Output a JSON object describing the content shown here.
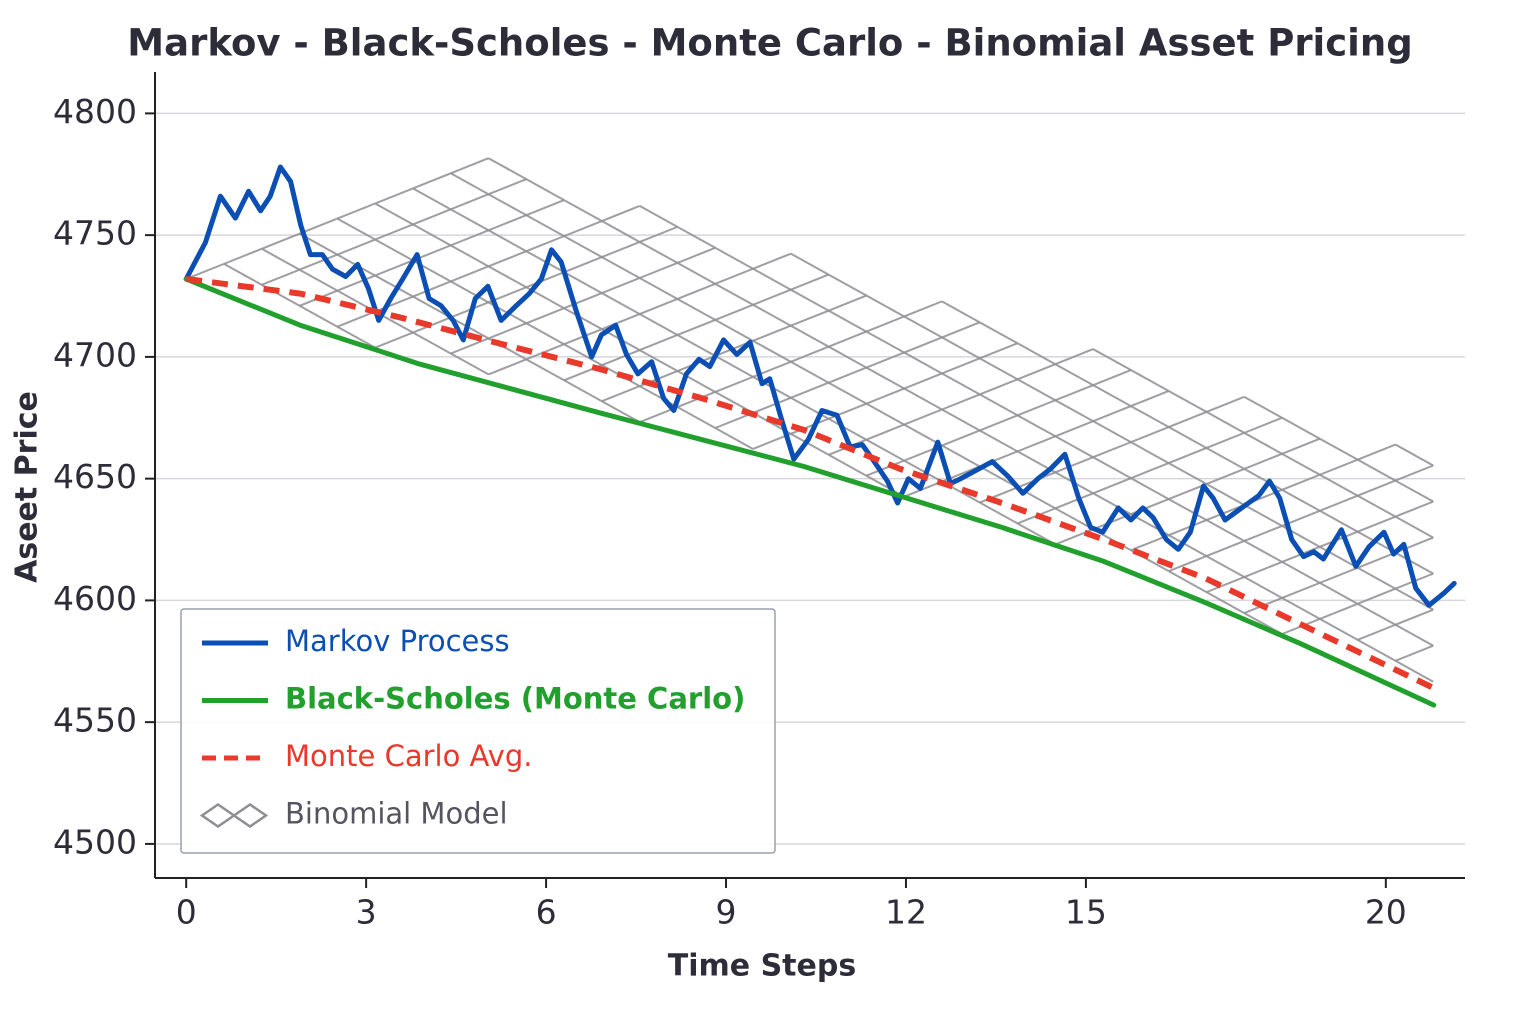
{
  "chart_data": {
    "type": "line",
    "title": "Markov - Black-Scholes - Monte Carlo - Binomial Asset Pricing",
    "xlabel": "Time Steps",
    "ylabel": "Aseet Price",
    "xlim": [
      -0.52,
      21.32
    ],
    "xticks": [
      0,
      3,
      6,
      9,
      12,
      15,
      20
    ],
    "ylim": [
      4486,
      4817
    ],
    "yticks": [
      4500,
      4550,
      4600,
      4650,
      4700,
      4750,
      4800
    ],
    "grid": true,
    "legend": "lower left",
    "series": [
      {
        "name": "Markov Process",
        "color": "#0b4fb5",
        "type": "line",
        "x": [
          0,
          0.32,
          0.57,
          0.82,
          1.04,
          1.24,
          1.4,
          1.57,
          1.74,
          1.91,
          2.07,
          2.27,
          2.44,
          2.66,
          2.86,
          3.04,
          3.21,
          3.41,
          3.61,
          3.85,
          4.05,
          4.25,
          4.45,
          4.62,
          4.82,
          5.03,
          5.25,
          5.5,
          5.72,
          5.92,
          6.09,
          6.25,
          6.5,
          6.76,
          6.92,
          7.16,
          7.34,
          7.53,
          7.76,
          7.96,
          8.13,
          8.34,
          8.55,
          8.73,
          8.96,
          9.18,
          9.4,
          9.6,
          9.73,
          9.93,
          10.13,
          10.37,
          10.6,
          10.85,
          11.07,
          11.27,
          11.47,
          11.69,
          11.86,
          12.04,
          12.24,
          12.53,
          12.74,
          12.91,
          13.14,
          13.44,
          13.7,
          13.95,
          14.2,
          14.41,
          14.65,
          14.88,
          15.08,
          15.28,
          15.54,
          15.75,
          15.95,
          16.12,
          16.34,
          16.54,
          16.74,
          16.96,
          17.12,
          17.32,
          17.54,
          17.71,
          17.88,
          18.06,
          18.23,
          18.43,
          18.63,
          18.8,
          18.96,
          19.26,
          19.5,
          19.72,
          19.97,
          20.13,
          20.3,
          20.5,
          20.72,
          20.97,
          21.14
        ],
        "values": [
          4732,
          4747,
          4766,
          4757,
          4768,
          4760,
          4766,
          4778,
          4772,
          4754,
          4742,
          4742,
          4736,
          4733,
          4738,
          4728,
          4715,
          4724,
          4732,
          4742,
          4724,
          4721,
          4715,
          4707,
          4724,
          4729,
          4715,
          4721,
          4726,
          4732,
          4744,
          4739,
          4719,
          4700,
          4709,
          4713,
          4701,
          4693,
          4698,
          4683,
          4678,
          4693,
          4699,
          4696,
          4707,
          4701,
          4706,
          4689,
          4691,
          4674,
          4658,
          4666,
          4678,
          4676,
          4663,
          4664,
          4657,
          4649,
          4640,
          4650,
          4646,
          4665,
          4648,
          4650,
          4653,
          4657,
          4651,
          4644,
          4650,
          4654,
          4660,
          4642,
          4630,
          4628,
          4638,
          4633,
          4638,
          4634,
          4625,
          4621,
          4628,
          4647,
          4642,
          4633,
          4637,
          4640,
          4643,
          4649,
          4642,
          4625,
          4618,
          4620,
          4617,
          4629,
          4614,
          4622,
          4628,
          4619,
          4623,
          4605,
          4598,
          4603,
          4607
        ]
      },
      {
        "name": "Black-Scholes (Monte Carlo)",
        "color": "#22a02e",
        "type": "line",
        "x": [
          0,
          0.9,
          1.9,
          3.9,
          6.9,
          8.6,
          10.3,
          13.6,
          15.3,
          17.0,
          18.6,
          20.8
        ],
        "values": [
          4732,
          4723,
          4713,
          4697,
          4677,
          4666,
          4655,
          4630,
          4616,
          4599,
          4582,
          4557
        ]
      },
      {
        "name": "Monte Carlo Avg.",
        "color": "#e8392a",
        "type": "line",
        "dash": true,
        "x": [
          0,
          1.9,
          3.6,
          5.3,
          6.9,
          8.6,
          10.3,
          11.9,
          13.6,
          15.3,
          17.0,
          18.6,
          20.8
        ],
        "values": [
          4732,
          4726,
          4716,
          4705,
          4695,
          4683,
          4670,
          4654,
          4640,
          4625,
          4609,
          4590,
          4564
        ]
      },
      {
        "name": "Binomial Model",
        "color": "#8e8e93",
        "type": "lattice",
        "x0": 0,
        "y0": 4732,
        "dt": 0.63,
        "up": 6.2,
        "down": -8.6,
        "steps": 33,
        "max_up_base": 6,
        "max_up_per_step": 0.25
      }
    ]
  }
}
